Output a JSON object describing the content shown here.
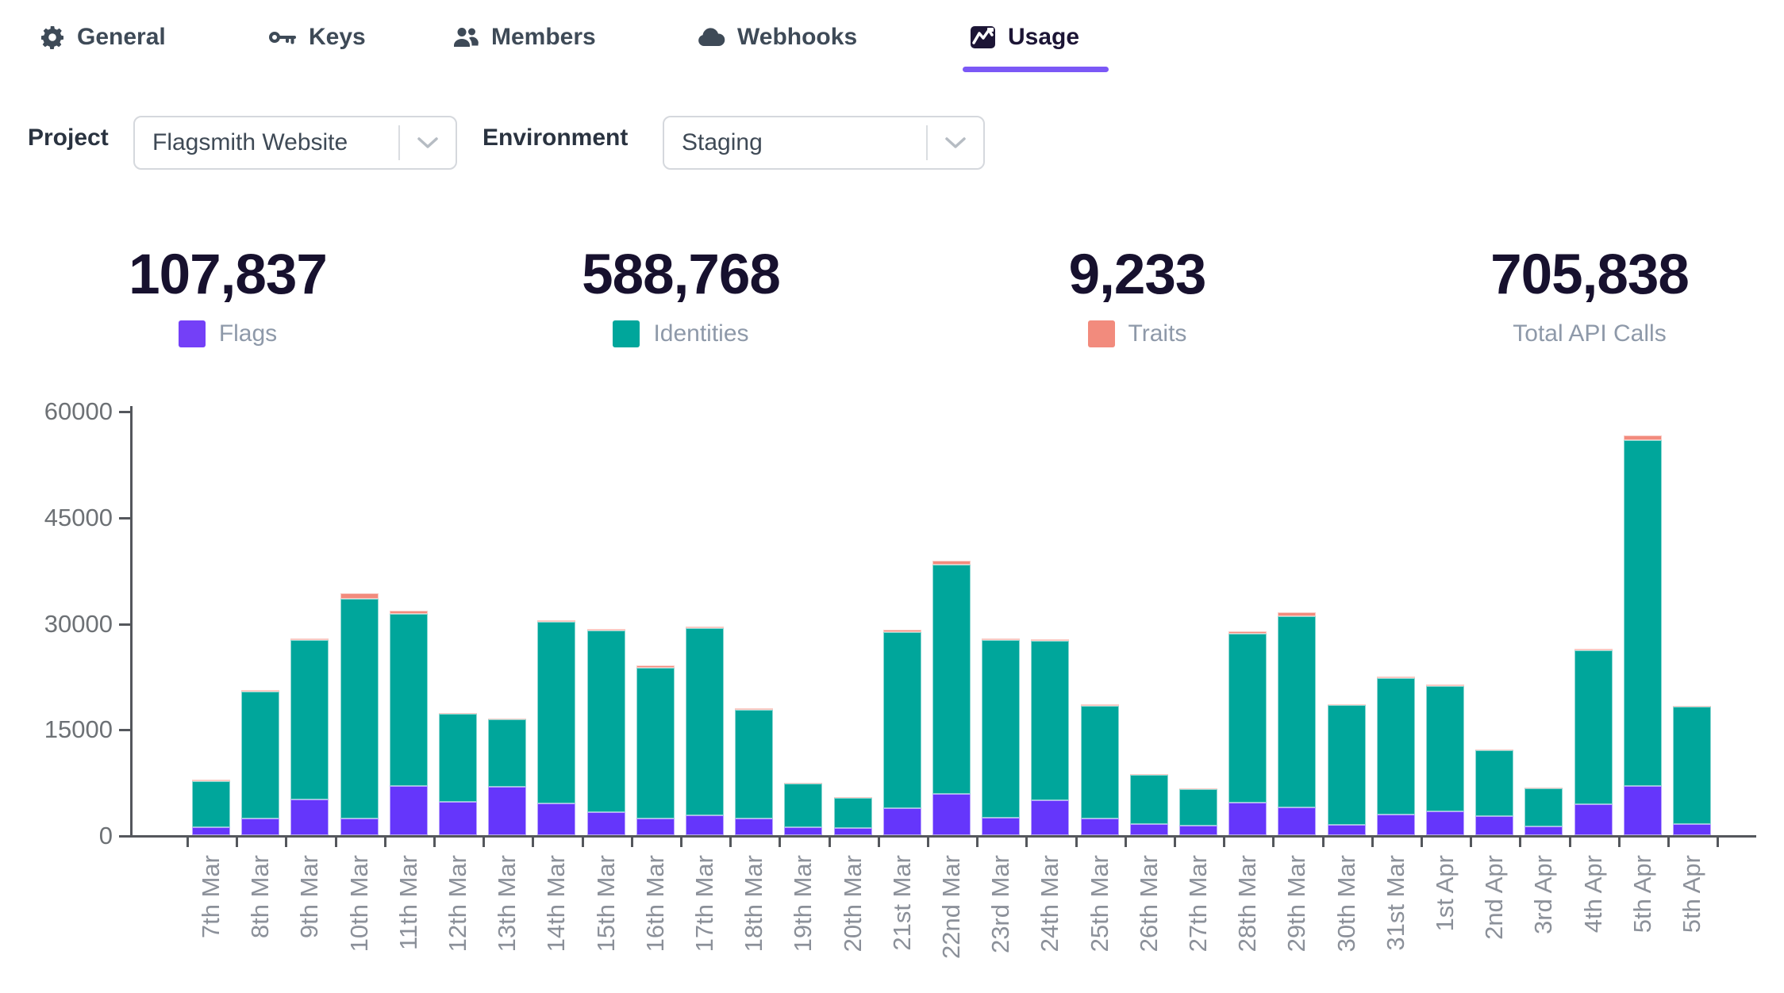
{
  "tabs": [
    {
      "label": "General",
      "icon": "gear-icon",
      "active": false
    },
    {
      "label": "Keys",
      "icon": "key-icon",
      "active": false
    },
    {
      "label": "Members",
      "icon": "members-icon",
      "active": false
    },
    {
      "label": "Webhooks",
      "icon": "cloud-icon",
      "active": false
    },
    {
      "label": "Usage",
      "icon": "chart-icon",
      "active": true
    }
  ],
  "controls": {
    "project_label": "Project",
    "project_value": "Flagsmith Website",
    "environment_label": "Environment",
    "environment_value": "Staging"
  },
  "stats": [
    {
      "value": "107,837",
      "label": "Flags",
      "swatch": "#7440f7"
    },
    {
      "value": "588,768",
      "label": "Identities",
      "swatch": "#00a69b"
    },
    {
      "value": "9,233",
      "label": "Traits",
      "swatch": "#f28b7d"
    },
    {
      "value": "705,838",
      "label": "Total API Calls",
      "swatch": null
    }
  ],
  "colors": {
    "accent_underline": "#7b58f6",
    "flags": "#6536fb",
    "identities": "#00a69b",
    "traits": "#f28b7d",
    "axis": "#54575c"
  },
  "chart_data": {
    "type": "bar",
    "stacked": true,
    "title": "",
    "xlabel": "",
    "ylabel": "",
    "ylim": [
      0,
      60000
    ],
    "yticks": [
      0,
      15000,
      30000,
      45000,
      60000
    ],
    "grid": false,
    "legend_position": "above-in-stat-cards",
    "categories": [
      "7th Mar",
      "8th Mar",
      "9th Mar",
      "10th Mar",
      "11th Mar",
      "12th Mar",
      "13th Mar",
      "14th Mar",
      "15th Mar",
      "16th Mar",
      "17th Mar",
      "18th Mar",
      "19th Mar",
      "20th Mar",
      "21st Mar",
      "22nd Mar",
      "23rd Mar",
      "24th Mar",
      "25th Mar",
      "26th Mar",
      "27th Mar",
      "28th Mar",
      "29th Mar",
      "30th Mar",
      "31st Mar",
      "1st Apr",
      "2nd Apr",
      "3rd Apr",
      "4th Apr",
      "5th Apr",
      "5th Apr"
    ],
    "series": [
      {
        "name": "Flags",
        "color": "#6536fb",
        "values": [
          1100,
          2400,
          5000,
          2400,
          7000,
          4700,
          6800,
          4500,
          3300,
          2300,
          2800,
          2300,
          1100,
          1000,
          3800,
          5800,
          2500,
          4900,
          2300,
          1600,
          1400,
          4600,
          3900,
          1400,
          2900,
          3400,
          2700,
          1200,
          4400,
          7000,
          1600
        ]
      },
      {
        "name": "Identities",
        "color": "#00a69b",
        "values": [
          6580,
          17900,
          22550,
          31000,
          24300,
          12450,
          9550,
          25650,
          25650,
          21400,
          26450,
          15420,
          6200,
          4320,
          24950,
          32400,
          25050,
          22550,
          16020,
          6900,
          5110,
          23920,
          27100,
          16950,
          19250,
          17650,
          9250,
          5420,
          21700,
          48800,
          16550
        ]
      },
      {
        "name": "Traits",
        "color": "#f28b7d",
        "values": [
          120,
          200,
          250,
          800,
          400,
          150,
          150,
          250,
          250,
          300,
          250,
          180,
          100,
          80,
          250,
          600,
          250,
          250,
          180,
          100,
          90,
          280,
          500,
          150,
          250,
          250,
          150,
          80,
          300,
          700,
          150
        ]
      }
    ]
  }
}
